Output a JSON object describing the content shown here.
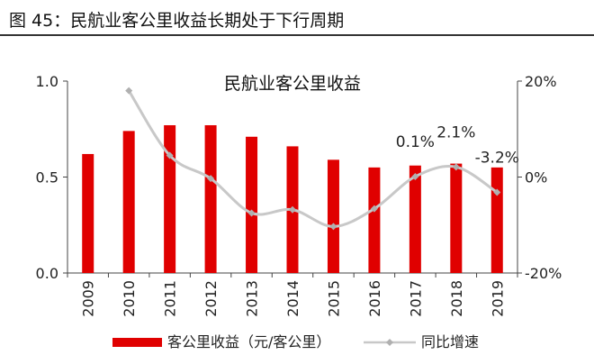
{
  "caption": "图  45：民航业客公里收益长期处于下行周期",
  "chart_data": {
    "type": "bar",
    "title": "民航业客公里收益",
    "categories": [
      "2009",
      "2010",
      "2011",
      "2012",
      "2013",
      "2014",
      "2015",
      "2016",
      "2017",
      "2018",
      "2019"
    ],
    "series": [
      {
        "name": "客公里收益（元/客公里）",
        "type": "bar",
        "axis": "left",
        "color": "#e00000",
        "values": [
          0.62,
          0.74,
          0.77,
          0.77,
          0.71,
          0.66,
          0.59,
          0.55,
          0.56,
          0.57,
          0.55
        ]
      },
      {
        "name": "同比增速",
        "type": "line",
        "axis": "right",
        "color": "#c8c8c8",
        "values": [
          null,
          18.0,
          4.5,
          -0.3,
          -7.5,
          -6.8,
          -10.3,
          -6.6,
          0.1,
          2.1,
          -3.2
        ]
      }
    ],
    "y_left": {
      "ylim": [
        0,
        1.0
      ],
      "ticks": [
        "0.0",
        "0.5",
        "1.0"
      ],
      "tick_values": [
        0,
        0.5,
        1.0
      ]
    },
    "y_right": {
      "ylim": [
        -20,
        20
      ],
      "ticks": [
        "-20%",
        "0%",
        "20%"
      ],
      "tick_values": [
        -20,
        0,
        20
      ]
    },
    "annotations": [
      {
        "category": "2017",
        "text": "0.1%"
      },
      {
        "category": "2018",
        "text": "2.1%"
      },
      {
        "category": "2019",
        "text": "-3.2%"
      }
    ],
    "grid": false,
    "legend_position": "bottom"
  }
}
